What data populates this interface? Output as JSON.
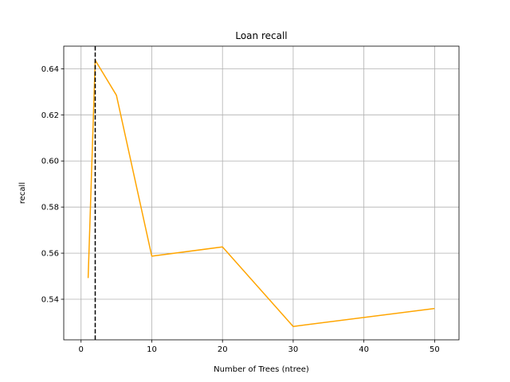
{
  "chart_data": {
    "type": "line",
    "title": "Loan recall",
    "xlabel": "Number of Trees (ntree)",
    "ylabel": "recall",
    "xlim": [
      -2.45,
      53.45
    ],
    "ylim": [
      0.5224,
      0.6498
    ],
    "xticks": [
      0,
      10,
      20,
      30,
      40,
      50
    ],
    "yticks": [
      0.54,
      0.56,
      0.58,
      0.6,
      0.62,
      0.64
    ],
    "ytick_labels": [
      "0.54",
      "0.56",
      "0.58",
      "0.60",
      "0.62",
      "0.64"
    ],
    "grid": true,
    "series": [
      {
        "x": [
          1,
          2,
          5,
          10,
          20,
          30,
          50
        ],
        "y": [
          0.5492,
          0.6437,
          0.6285,
          0.5587,
          0.5627,
          0.5282,
          0.536
        ],
        "color": "#ffa500"
      }
    ],
    "vline": {
      "x": 2,
      "color": "#000000",
      "style": "dashed"
    }
  }
}
